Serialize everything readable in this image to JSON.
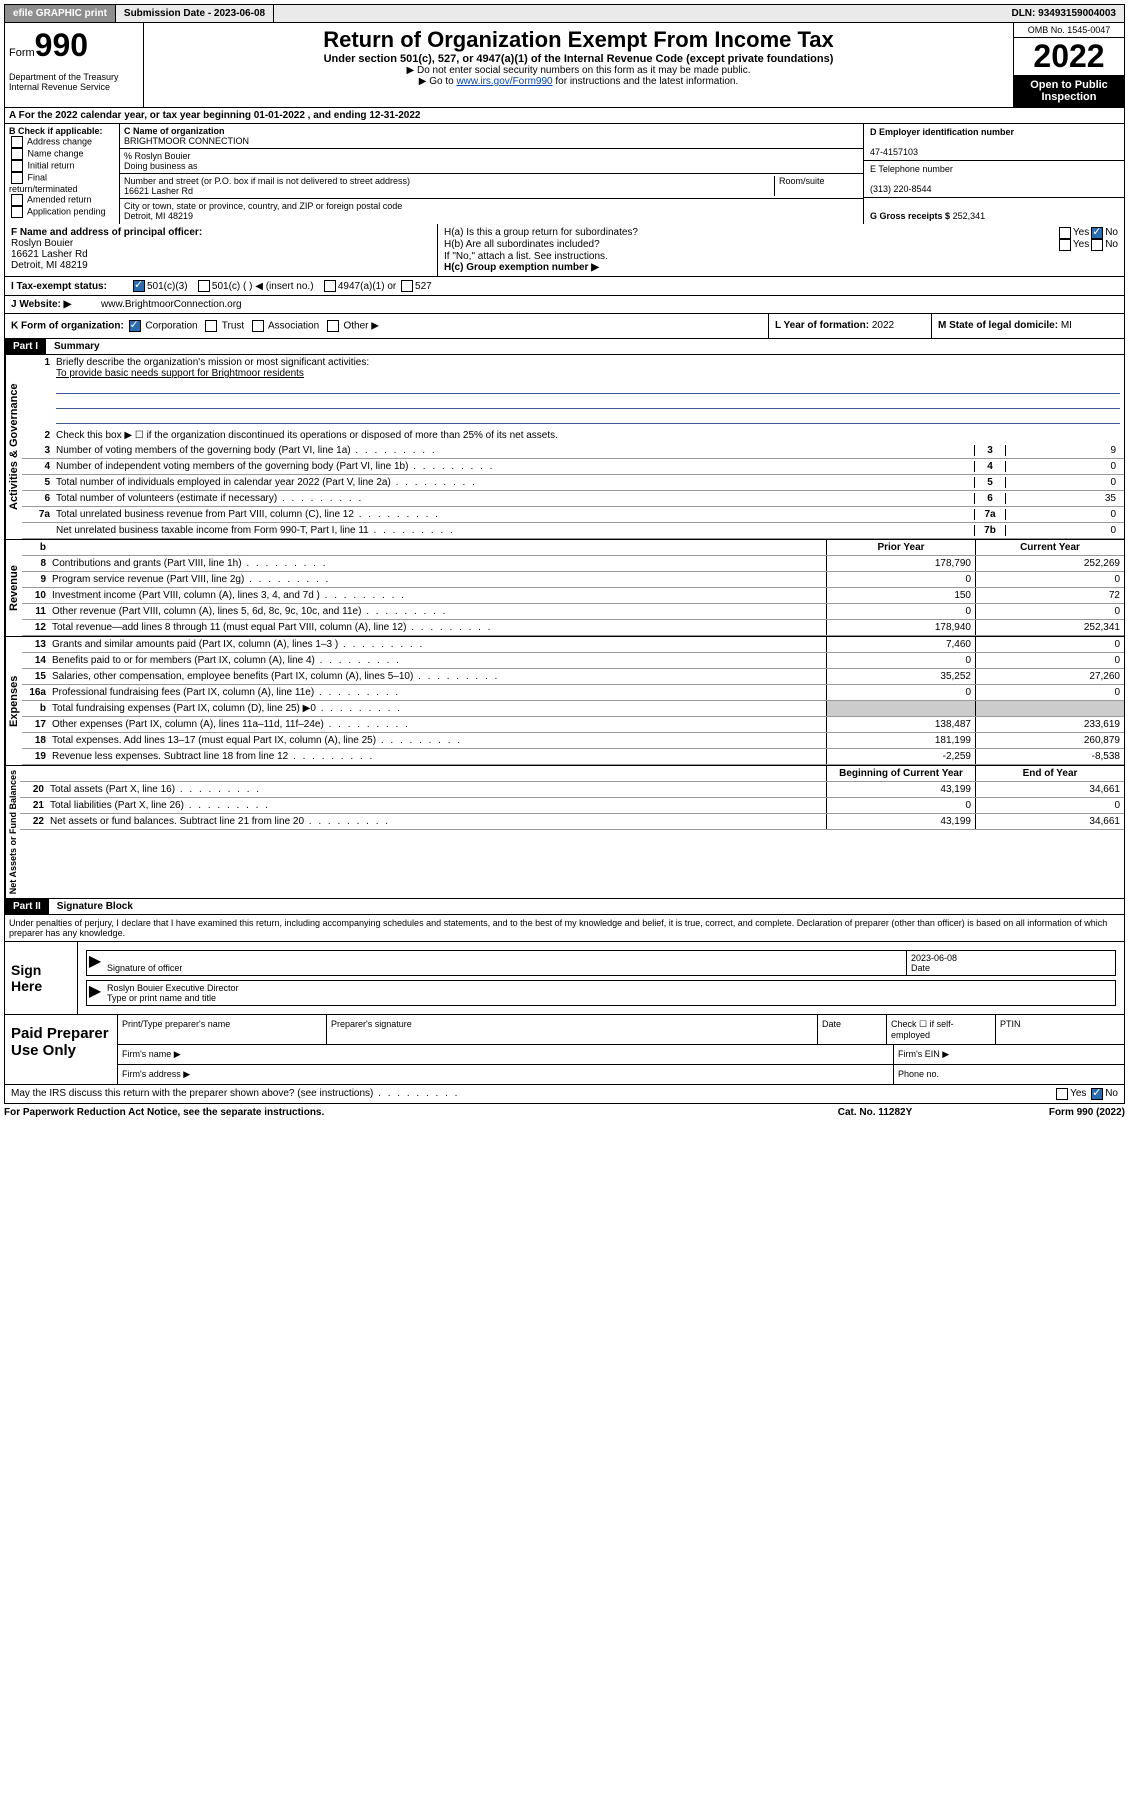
{
  "topbar": {
    "efile": "efile GRAPHIC print",
    "submission": "Submission Date - 2023-06-08",
    "dln": "DLN: 93493159004003"
  },
  "header": {
    "form_label": "Form",
    "form_num": "990",
    "dept": "Department of the Treasury Internal Revenue Service",
    "title": "Return of Organization Exempt From Income Tax",
    "subtitle": "Under section 501(c), 527, or 4947(a)(1) of the Internal Revenue Code (except private foundations)",
    "note1": "▶ Do not enter social security numbers on this form as it may be made public.",
    "note2_pre": "▶ Go to ",
    "note2_link": "www.irs.gov/Form990",
    "note2_post": " for instructions and the latest information.",
    "omb": "OMB No. 1545-0047",
    "year": "2022",
    "open": "Open to Public Inspection"
  },
  "row_a": "A For the 2022 calendar year, or tax year beginning 01-01-2022   , and ending 12-31-2022",
  "section_b": {
    "label": "B Check if applicable:",
    "items": [
      "Address change",
      "Name change",
      "Initial return",
      "Final return/terminated",
      "Amended return",
      "Application pending"
    ]
  },
  "section_c": {
    "name_label": "C Name of organization",
    "name": "BRIGHTMOOR CONNECTION",
    "care_of": "% Roslyn Bouier",
    "dba_label": "Doing business as",
    "street_label": "Number and street (or P.O. box if mail is not delivered to street address)",
    "room_label": "Room/suite",
    "street": "16621 Lasher Rd",
    "city_label": "City or town, state or province, country, and ZIP or foreign postal code",
    "city": "Detroit, MI  48219"
  },
  "section_d": {
    "ein_label": "D Employer identification number",
    "ein": "47-4157103",
    "phone_label": "E Telephone number",
    "phone": "(313) 220-8544",
    "gross_label": "G Gross receipts $",
    "gross": "252,341"
  },
  "section_f": {
    "label": "F Name and address of principal officer:",
    "name": "Roslyn Bouier",
    "street": "16621 Lasher Rd",
    "city": "Detroit, MI  48219"
  },
  "section_h": {
    "a_label": "H(a)  Is this a group return for subordinates?",
    "b_label": "H(b)  Are all subordinates included?",
    "b_note": "If \"No,\" attach a list. See instructions.",
    "c_label": "H(c)  Group exemption number ▶",
    "yes": "Yes",
    "no": "No"
  },
  "tax_status": {
    "label": "I   Tax-exempt status:",
    "opt1": "501(c)(3)",
    "opt2": "501(c) (  ) ◀ (insert no.)",
    "opt3": "4947(a)(1) or",
    "opt4": "527"
  },
  "website": {
    "label": "J   Website: ▶",
    "value": "www.BrightmoorConnection.org"
  },
  "org_form": {
    "label": "K Form of organization:",
    "corp": "Corporation",
    "trust": "Trust",
    "assoc": "Association",
    "other": "Other ▶",
    "year_label": "L Year of formation:",
    "year": "2022",
    "state_label": "M State of legal domicile:",
    "state": "MI"
  },
  "part1": {
    "header": "Part I",
    "title": "Summary",
    "labels": {
      "gov": "Activities & Governance",
      "rev": "Revenue",
      "exp": "Expenses",
      "net": "Net Assets or Fund Balances"
    },
    "line1_label": "Briefly describe the organization's mission or most significant activities:",
    "line1_text": "To provide basic needs support for Brightmoor residents",
    "line2": "Check this box ▶ ☐  if the organization discontinued its operations or disposed of more than 25% of its net assets.",
    "lines_gov": [
      {
        "n": "3",
        "t": "Number of voting members of the governing body (Part VI, line 1a)",
        "box": "3",
        "v": "9"
      },
      {
        "n": "4",
        "t": "Number of independent voting members of the governing body (Part VI, line 1b)",
        "box": "4",
        "v": "0"
      },
      {
        "n": "5",
        "t": "Total number of individuals employed in calendar year 2022 (Part V, line 2a)",
        "box": "5",
        "v": "0"
      },
      {
        "n": "6",
        "t": "Total number of volunteers (estimate if necessary)",
        "box": "6",
        "v": "35"
      },
      {
        "n": "7a",
        "t": "Total unrelated business revenue from Part VIII, column (C), line 12",
        "box": "7a",
        "v": "0"
      },
      {
        "n": "",
        "t": "Net unrelated business taxable income from Form 990-T, Part I, line 11",
        "box": "7b",
        "v": "0"
      }
    ],
    "col_headers": {
      "b": "b",
      "prior": "Prior Year",
      "curr": "Current Year",
      "begin": "Beginning of Current Year",
      "end": "End of Year"
    },
    "lines_rev": [
      {
        "n": "8",
        "t": "Contributions and grants (Part VIII, line 1h)",
        "p": "178,790",
        "c": "252,269"
      },
      {
        "n": "9",
        "t": "Program service revenue (Part VIII, line 2g)",
        "p": "0",
        "c": "0"
      },
      {
        "n": "10",
        "t": "Investment income (Part VIII, column (A), lines 3, 4, and 7d )",
        "p": "150",
        "c": "72"
      },
      {
        "n": "11",
        "t": "Other revenue (Part VIII, column (A), lines 5, 6d, 8c, 9c, 10c, and 11e)",
        "p": "0",
        "c": "0"
      },
      {
        "n": "12",
        "t": "Total revenue—add lines 8 through 11 (must equal Part VIII, column (A), line 12)",
        "p": "178,940",
        "c": "252,341"
      }
    ],
    "lines_exp": [
      {
        "n": "13",
        "t": "Grants and similar amounts paid (Part IX, column (A), lines 1–3 )",
        "p": "7,460",
        "c": "0"
      },
      {
        "n": "14",
        "t": "Benefits paid to or for members (Part IX, column (A), line 4)",
        "p": "0",
        "c": "0"
      },
      {
        "n": "15",
        "t": "Salaries, other compensation, employee benefits (Part IX, column (A), lines 5–10)",
        "p": "35,252",
        "c": "27,260"
      },
      {
        "n": "16a",
        "t": "Professional fundraising fees (Part IX, column (A), line 11e)",
        "p": "0",
        "c": "0"
      },
      {
        "n": "b",
        "t": "Total fundraising expenses (Part IX, column (D), line 25) ▶0",
        "p": "",
        "c": ""
      },
      {
        "n": "17",
        "t": "Other expenses (Part IX, column (A), lines 11a–11d, 11f–24e)",
        "p": "138,487",
        "c": "233,619"
      },
      {
        "n": "18",
        "t": "Total expenses. Add lines 13–17 (must equal Part IX, column (A), line 25)",
        "p": "181,199",
        "c": "260,879"
      },
      {
        "n": "19",
        "t": "Revenue less expenses. Subtract line 18 from line 12",
        "p": "-2,259",
        "c": "-8,538"
      }
    ],
    "lines_net": [
      {
        "n": "20",
        "t": "Total assets (Part X, line 16)",
        "p": "43,199",
        "c": "34,661"
      },
      {
        "n": "21",
        "t": "Total liabilities (Part X, line 26)",
        "p": "0",
        "c": "0"
      },
      {
        "n": "22",
        "t": "Net assets or fund balances. Subtract line 21 from line 20",
        "p": "43,199",
        "c": "34,661"
      }
    ]
  },
  "part2": {
    "header": "Part II",
    "title": "Signature Block",
    "penalties": "Under penalties of perjury, I declare that I have examined this return, including accompanying schedules and statements, and to the best of my knowledge and belief, it is true, correct, and complete. Declaration of preparer (other than officer) is based on all information of which preparer has any knowledge.",
    "sign_here": "Sign Here",
    "sig_officer": "Signature of officer",
    "sig_date": "2023-06-08",
    "date_label": "Date",
    "officer_name": "Roslyn Bouier  Executive Director",
    "type_name": "Type or print name and title",
    "paid_prep": "Paid Preparer Use Only",
    "prep_cols": {
      "name": "Print/Type preparer's name",
      "sig": "Preparer's signature",
      "date": "Date",
      "check": "Check ☐  if self-employed",
      "ptin": "PTIN"
    },
    "firm_name": "Firm's name   ▶",
    "firm_ein": "Firm's EIN ▶",
    "firm_addr": "Firm's address ▶",
    "phone": "Phone no.",
    "discuss": "May the IRS discuss this return with the preparer shown above? (see instructions)",
    "paperwork": "For Paperwork Reduction Act Notice, see the separate instructions.",
    "catno": "Cat. No. 11282Y",
    "formno": "Form 990 (2022)"
  }
}
